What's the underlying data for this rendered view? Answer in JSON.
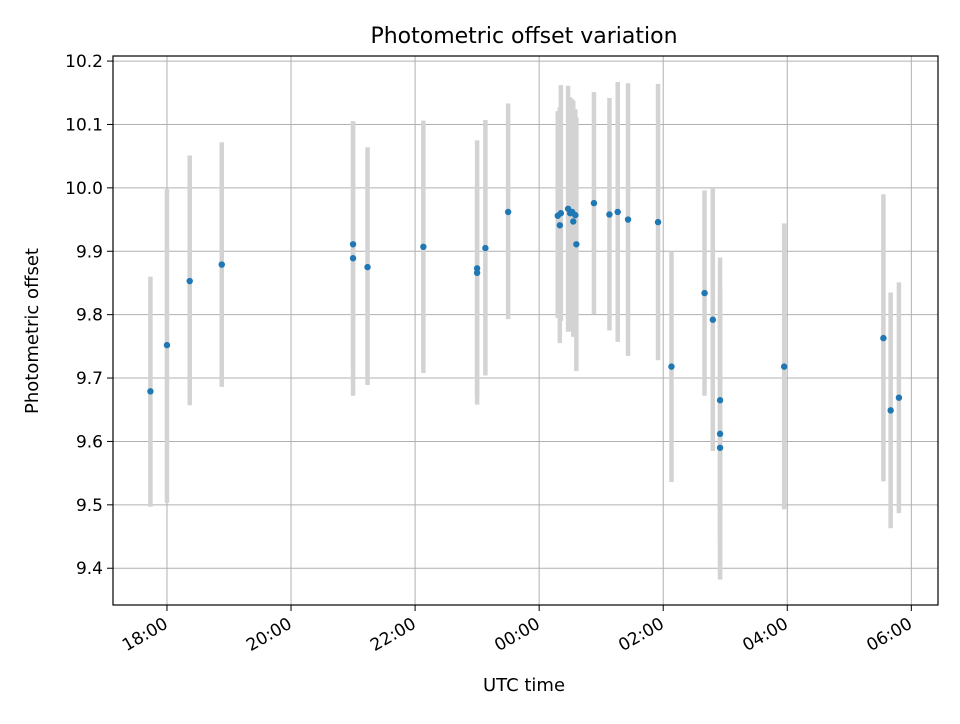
{
  "chart_data": {
    "type": "scatter",
    "title": "Photometric offset variation",
    "xlabel": "UTC time",
    "ylabel": "Photometric offset",
    "x_tick_labels": [
      "18:00",
      "20:00",
      "22:00",
      "00:00",
      "02:00",
      "04:00",
      "06:00"
    ],
    "x_tick_hours": [
      18,
      20,
      22,
      24,
      26,
      28,
      30
    ],
    "xlim_hours": [
      17.13,
      30.43
    ],
    "y_tick_labels": [
      "9.4",
      "9.5",
      "9.6",
      "9.7",
      "9.8",
      "9.9",
      "10.0",
      "10.1",
      "10.2"
    ],
    "y_ticks": [
      9.4,
      9.5,
      9.6,
      9.7,
      9.8,
      9.9,
      10.0,
      10.1,
      10.2
    ],
    "ylim": [
      9.342,
      10.208
    ],
    "grid": true,
    "colors": {
      "point": "#1f77b4",
      "errorbar": "#d3d3d3",
      "grid": "#b0b0b0",
      "axes": "#000000"
    },
    "series": [
      {
        "points": [
          {
            "time": "17:44",
            "y": 9.679,
            "ylow": 9.497,
            "yhigh": 9.86
          },
          {
            "time": "18:00",
            "y": 9.752,
            "ylow": 9.503,
            "yhigh": 9.998
          },
          {
            "time": "18:22",
            "y": 9.853,
            "ylow": 9.657,
            "yhigh": 10.051
          },
          {
            "time": "18:53",
            "y": 9.879,
            "ylow": 9.686,
            "yhigh": 10.072
          },
          {
            "time": "21:00",
            "y": 9.911,
            "ylow": 9.716,
            "yhigh": 10.105
          },
          {
            "time": "21:00",
            "y": 9.889,
            "ylow": 9.672,
            "yhigh": 10.105
          },
          {
            "time": "21:14",
            "y": 9.875,
            "ylow": 9.689,
            "yhigh": 10.064
          },
          {
            "time": "22:08",
            "y": 9.907,
            "ylow": 9.708,
            "yhigh": 10.106
          },
          {
            "time": "23:00",
            "y": 9.873,
            "ylow": 9.671,
            "yhigh": 10.075
          },
          {
            "time": "23:00",
            "y": 9.866,
            "ylow": 9.658,
            "yhigh": 10.0
          },
          {
            "time": "23:08",
            "y": 9.905,
            "ylow": 9.704,
            "yhigh": 10.107
          },
          {
            "time": "23:30",
            "y": 9.962,
            "ylow": 9.793,
            "yhigh": 10.133
          },
          {
            "time": "00:18",
            "y": 9.956,
            "ylow": 9.795,
            "yhigh": 10.121
          },
          {
            "time": "00:20",
            "y": 9.941,
            "ylow": 9.755,
            "yhigh": 10.127
          },
          {
            "time": "00:21",
            "y": 9.96,
            "ylow": 9.79,
            "yhigh": 10.162
          },
          {
            "time": "00:28",
            "y": 9.967,
            "ylow": 9.773,
            "yhigh": 10.161
          },
          {
            "time": "00:30",
            "y": 9.96,
            "ylow": 9.776,
            "yhigh": 10.143
          },
          {
            "time": "00:32",
            "y": 9.962,
            "ylow": 9.774,
            "yhigh": 10.14
          },
          {
            "time": "00:33",
            "y": 9.947,
            "ylow": 9.765,
            "yhigh": 10.137
          },
          {
            "time": "00:35",
            "y": 9.957,
            "ylow": 9.778,
            "yhigh": 10.124
          },
          {
            "time": "00:36",
            "y": 9.911,
            "ylow": 9.711,
            "yhigh": 10.111
          },
          {
            "time": "00:53",
            "y": 9.976,
            "ylow": 9.801,
            "yhigh": 10.151
          },
          {
            "time": "01:08",
            "y": 9.958,
            "ylow": 9.775,
            "yhigh": 10.142
          },
          {
            "time": "01:16",
            "y": 9.962,
            "ylow": 9.757,
            "yhigh": 10.167
          },
          {
            "time": "01:26",
            "y": 9.95,
            "ylow": 9.735,
            "yhigh": 10.165
          },
          {
            "time": "01:55",
            "y": 9.946,
            "ylow": 9.728,
            "yhigh": 10.164
          },
          {
            "time": "02:08",
            "y": 9.718,
            "ylow": 9.536,
            "yhigh": 9.9
          },
          {
            "time": "02:40",
            "y": 9.834,
            "ylow": 9.672,
            "yhigh": 9.996
          },
          {
            "time": "02:48",
            "y": 9.792,
            "ylow": 9.585,
            "yhigh": 10.0
          },
          {
            "time": "02:55",
            "y": 9.665,
            "ylow": 9.44,
            "yhigh": 9.89
          },
          {
            "time": "02:55",
            "y": 9.612,
            "ylow": 9.382,
            "yhigh": 9.84
          },
          {
            "time": "02:55",
            "y": 9.59,
            "ylow": 9.385,
            "yhigh": 9.8
          },
          {
            "time": "03:57",
            "y": 9.718,
            "ylow": 9.493,
            "yhigh": 9.944
          },
          {
            "time": "05:33",
            "y": 9.763,
            "ylow": 9.537,
            "yhigh": 9.99
          },
          {
            "time": "05:40",
            "y": 9.649,
            "ylow": 9.463,
            "yhigh": 9.835
          },
          {
            "time": "05:48",
            "y": 9.669,
            "ylow": 9.487,
            "yhigh": 9.851
          }
        ]
      }
    ]
  }
}
